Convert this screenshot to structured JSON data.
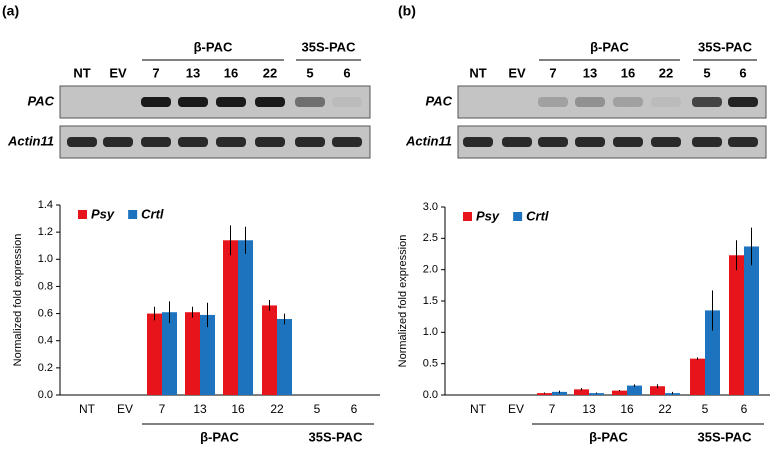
{
  "panels": [
    {
      "label": "(a)",
      "gel": {
        "groups": [
          "β-PAC",
          "35S-PAC"
        ],
        "lanes": [
          "NT",
          "EV",
          "7",
          "13",
          "16",
          "22",
          "5",
          "6"
        ],
        "rows": [
          "PAC",
          "Actin11"
        ]
      }
    },
    {
      "label": "(b)",
      "gel": {
        "groups": [
          "β-PAC",
          "35S-PAC"
        ],
        "lanes": [
          "NT",
          "EV",
          "7",
          "13",
          "16",
          "22",
          "5",
          "6"
        ],
        "rows": [
          "PAC",
          "Actin11"
        ]
      }
    }
  ],
  "chart_data": [
    {
      "type": "bar",
      "ylabel": "Normalized fold expression",
      "categories": [
        "NT",
        "EV",
        "7",
        "13",
        "16",
        "22",
        "5",
        "6"
      ],
      "groups": [
        "β-PAC",
        "35S-PAC"
      ],
      "series": [
        {
          "name": "Psy",
          "color": "#e8141b",
          "values": [
            0,
            0,
            0.6,
            0.61,
            1.14,
            0.66,
            0,
            0
          ],
          "errors": [
            0,
            0,
            0.05,
            0.04,
            0.11,
            0.04,
            0,
            0
          ]
        },
        {
          "name": "Crtl",
          "color": "#1e73be",
          "values": [
            0,
            0,
            0.61,
            0.59,
            1.14,
            0.56,
            0,
            0
          ],
          "errors": [
            0,
            0,
            0.08,
            0.09,
            0.1,
            0.04,
            0,
            0
          ]
        }
      ],
      "ylim": [
        0,
        1.4
      ],
      "yticks": [
        {
          "value": 0,
          "label": "0.0"
        },
        0.2,
        0.4,
        0.6,
        0.8,
        {
          "value": 1,
          "label": "1.0"
        },
        1.2,
        1.4
      ],
      "legend": "upper left"
    },
    {
      "type": "bar",
      "ylabel": "Normalized fold expression",
      "categories": [
        "NT",
        "EV",
        "7",
        "13",
        "16",
        "22",
        "5",
        "6"
      ],
      "groups": [
        "β-PAC",
        "35S-PAC"
      ],
      "series": [
        {
          "name": "Psy",
          "color": "#e8141b",
          "values": [
            0,
            0,
            0.03,
            0.09,
            0.07,
            0.14,
            0.58,
            2.23
          ],
          "errors": [
            0,
            0,
            0.01,
            0.02,
            0.01,
            0.03,
            0.02,
            0.24
          ]
        },
        {
          "name": "Crtl",
          "color": "#1e73be",
          "values": [
            0,
            0,
            0.05,
            0.03,
            0.15,
            0.03,
            1.35,
            2.37
          ],
          "errors": [
            0,
            0,
            0.02,
            0.01,
            0.02,
            0.02,
            0.32,
            0.3
          ]
        }
      ],
      "ylim": [
        0,
        3
      ],
      "yticks": [
        {
          "value": 0,
          "label": "0.0"
        },
        0.5,
        {
          "value": 1,
          "label": "1.0"
        },
        1.5,
        {
          "value": 2,
          "label": "2.0"
        },
        2.5,
        {
          "value": 3,
          "label": "3.0"
        }
      ],
      "legend": "upper left"
    }
  ]
}
